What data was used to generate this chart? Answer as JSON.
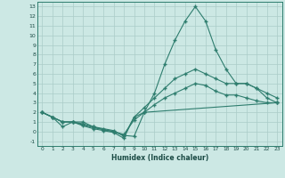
{
  "xlabel": "Humidex (Indice chaleur)",
  "xlim": [
    -0.5,
    23.5
  ],
  "ylim": [
    -1.5,
    13.5
  ],
  "xticks": [
    0,
    1,
    2,
    3,
    4,
    5,
    6,
    7,
    8,
    9,
    10,
    11,
    12,
    13,
    14,
    15,
    16,
    17,
    18,
    19,
    20,
    21,
    22,
    23
  ],
  "yticks": [
    -1,
    0,
    1,
    2,
    3,
    4,
    5,
    6,
    7,
    8,
    9,
    10,
    11,
    12,
    13
  ],
  "line_color": "#2e7d6e",
  "bg_color": "#cce8e4",
  "grid_color": "#aaccc8",
  "lines": [
    {
      "x": [
        0,
        1,
        2,
        3,
        4,
        5,
        6,
        7,
        8,
        9,
        10,
        11,
        12,
        13,
        14,
        15,
        16,
        17,
        18,
        19,
        20,
        21,
        22,
        23
      ],
      "y": [
        2,
        1.5,
        0.5,
        1,
        1,
        0.5,
        0.2,
        0,
        -0.4,
        -0.5,
        2,
        4,
        7,
        9.5,
        11.5,
        13,
        11.5,
        8.5,
        6.5,
        5,
        5,
        4.5,
        3.5,
        3
      ]
    },
    {
      "x": [
        0,
        1,
        2,
        3,
        4,
        5,
        6,
        7,
        8,
        9,
        10,
        11,
        12,
        13,
        14,
        15,
        16,
        17,
        18,
        19,
        20,
        21,
        22,
        23
      ],
      "y": [
        2,
        1.5,
        1,
        1,
        0.8,
        0.5,
        0.3,
        0.1,
        -0.5,
        1.5,
        2.5,
        3.5,
        4.5,
        5.5,
        6,
        6.5,
        6,
        5.5,
        5,
        5,
        5,
        4.5,
        4,
        3.5
      ]
    },
    {
      "x": [
        0,
        1,
        2,
        3,
        4,
        5,
        6,
        7,
        8,
        9,
        10,
        11,
        12,
        13,
        14,
        15,
        16,
        17,
        18,
        19,
        20,
        21,
        22,
        23
      ],
      "y": [
        2,
        1.5,
        1,
        1,
        0.7,
        0.4,
        0.2,
        0.0,
        -0.3,
        1.2,
        2,
        2.8,
        3.5,
        4,
        4.5,
        5,
        4.8,
        4.2,
        3.8,
        3.8,
        3.5,
        3.2,
        3,
        3
      ]
    },
    {
      "x": [
        0,
        1,
        2,
        3,
        4,
        5,
        6,
        7,
        8,
        9,
        10,
        23
      ],
      "y": [
        2,
        1.5,
        1,
        1,
        0.6,
        0.3,
        0.1,
        -0.1,
        -0.7,
        1.5,
        2,
        3
      ]
    }
  ]
}
